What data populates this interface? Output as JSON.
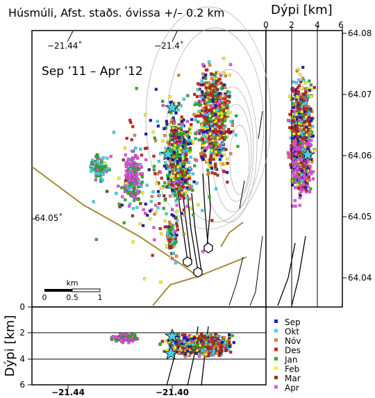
{
  "title": "Húsmúli, Afst. staðs. óvissa +/– 0.2 km",
  "period": "Sep ’11 – Apr ’12",
  "map": {
    "top_lon_labels": [
      "−21.44˚",
      "−21.4˚"
    ],
    "lat_label": "64.05˚",
    "scale_title": "km",
    "scale_ticks": [
      "0",
      "0.5",
      "1"
    ]
  },
  "depth_right": {
    "title": "Dýpi [km]",
    "ticks": [
      "0",
      "2",
      "4",
      "6"
    ],
    "lat_ticks": [
      "64.08",
      "64.07",
      "64.06",
      "64.05",
      "64.04"
    ]
  },
  "depth_bottom": {
    "ylabel": "Dýpi [km]",
    "yticks": [
      "0",
      "2",
      "4",
      "6"
    ],
    "xticks": [
      "−21.44",
      "−21.40"
    ]
  },
  "legend": [
    {
      "label": "Sep",
      "color": "#1e1eb4"
    },
    {
      "label": "Okt",
      "color": "#46d2e6"
    },
    {
      "label": "Nóv",
      "color": "#d28c3c"
    },
    {
      "label": "Des",
      "color": "#d21e1e"
    },
    {
      "label": "Jan",
      "color": "#28b428"
    },
    {
      "label": "Feb",
      "color": "#f0f028"
    },
    {
      "label": "Mar",
      "color": "#8c3c1e"
    },
    {
      "label": "Apr",
      "color": "#e650e6"
    }
  ]
}
